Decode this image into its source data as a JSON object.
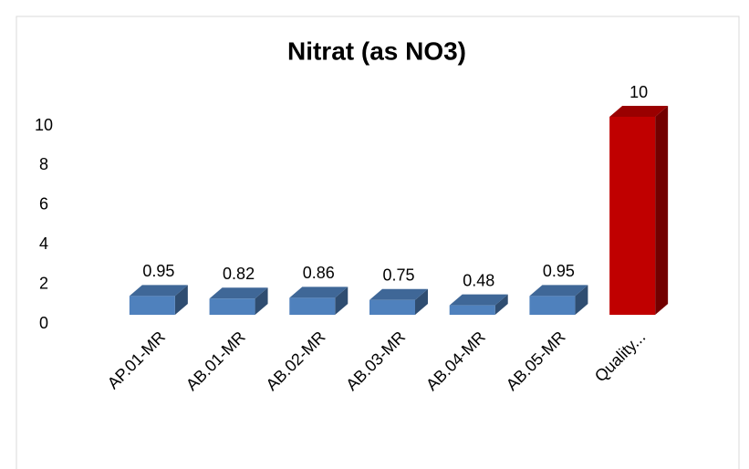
{
  "chart_data": {
    "type": "bar3d",
    "title": "Nitrat (as NO3)",
    "categories": [
      "AP.01-MR",
      "AB.01-MR",
      "AB.02-MR",
      "AB.03-MR",
      "AB.04-MR",
      "AB.05-MR",
      "Quality..."
    ],
    "values": [
      0.95,
      0.82,
      0.86,
      0.75,
      0.48,
      0.95,
      10
    ],
    "colors": [
      "#4f81bd",
      "#4f81bd",
      "#4f81bd",
      "#4f81bd",
      "#4f81bd",
      "#4f81bd",
      "#c00000"
    ],
    "ylim": [
      0,
      10
    ],
    "yticks": [
      0,
      2,
      4,
      6,
      8,
      10
    ],
    "grid": false
  }
}
